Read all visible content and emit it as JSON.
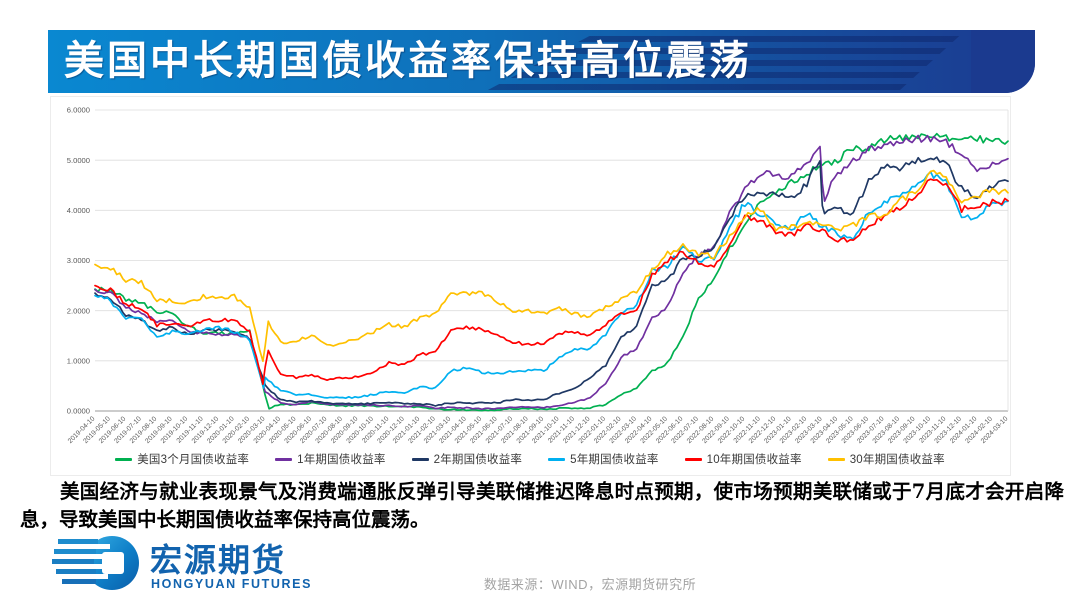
{
  "header": {
    "title": "美国中长期国债收益率保持高位震荡"
  },
  "chart_data": {
    "type": "line",
    "title": "",
    "xlabel": "",
    "ylabel": "",
    "ylim": [
      0,
      6
    ],
    "grid": true,
    "legend_position": "bottom",
    "yticks": [
      "0.0000",
      "1.0000",
      "2.0000",
      "3.0000",
      "4.0000",
      "5.0000",
      "6.0000"
    ],
    "x_labels": [
      "2019-04-10",
      "2019-05-10",
      "2019-06-10",
      "2019-07-10",
      "2019-08-10",
      "2019-09-10",
      "2019-10-10",
      "2019-11-10",
      "2019-12-10",
      "2020-01-10",
      "2020-02-10",
      "2020-03-10",
      "2020-04-10",
      "2020-05-10",
      "2020-06-10",
      "2020-07-10",
      "2020-08-10",
      "2020-09-10",
      "2020-10-10",
      "2020-11-10",
      "2020-12-10",
      "2021-01-10",
      "2021-02-10",
      "2021-03-10",
      "2021-04-10",
      "2021-05-10",
      "2021-06-10",
      "2021-07-10",
      "2021-08-10",
      "2021-09-10",
      "2021-10-10",
      "2021-11-10",
      "2021-12-10",
      "2022-01-10",
      "2022-02-10",
      "2022-03-10",
      "2022-04-10",
      "2022-05-10",
      "2022-06-10",
      "2022-07-10",
      "2022-08-10",
      "2022-09-10",
      "2022-10-10",
      "2022-11-10",
      "2022-12-10",
      "2023-01-10",
      "2023-02-10",
      "2023-03-10",
      "2023-04-10",
      "2023-05-10",
      "2023-06-10",
      "2023-07-10",
      "2023-08-10",
      "2023-09-10",
      "2023-10-10",
      "2023-11-10",
      "2023-12-10",
      "2024-01-10",
      "2024-02-10",
      "2024-03-10"
    ],
    "series": [
      {
        "name": "美国3个月国债收益率",
        "color": "#00B050",
        "values": [
          2.43,
          2.4,
          2.23,
          2.15,
          1.97,
          1.95,
          1.68,
          1.56,
          1.55,
          1.55,
          1.58,
          0.3,
          0.14,
          0.12,
          0.16,
          0.13,
          0.1,
          0.11,
          0.1,
          0.09,
          0.08,
          0.08,
          0.04,
          0.03,
          0.02,
          0.01,
          0.02,
          0.05,
          0.05,
          0.04,
          0.05,
          0.05,
          0.06,
          0.13,
          0.33,
          0.45,
          0.79,
          0.96,
          1.49,
          2.23,
          2.63,
          3.23,
          3.72,
          4.21,
          4.31,
          4.57,
          4.74,
          4.9,
          5.0,
          5.25,
          5.22,
          5.4,
          5.45,
          5.46,
          5.47,
          5.45,
          5.42,
          5.42,
          5.4,
          5.38
        ],
        "spikes": [
          {
            "t": 11.25,
            "v": 0.05
          }
        ]
      },
      {
        "name": "1年期国债收益率",
        "color": "#7030A0",
        "values": [
          2.42,
          2.35,
          2.05,
          1.95,
          1.78,
          1.78,
          1.58,
          1.55,
          1.54,
          1.52,
          1.45,
          0.38,
          0.16,
          0.13,
          0.18,
          0.14,
          0.13,
          0.12,
          0.12,
          0.11,
          0.09,
          0.1,
          0.06,
          0.07,
          0.06,
          0.04,
          0.05,
          0.08,
          0.07,
          0.07,
          0.11,
          0.17,
          0.27,
          0.55,
          1.06,
          1.26,
          1.86,
          2.07,
          2.77,
          3.09,
          3.26,
          3.93,
          4.44,
          4.75,
          4.7,
          4.68,
          4.91,
          4.6,
          4.76,
          4.97,
          5.21,
          5.32,
          5.36,
          5.43,
          5.43,
          5.36,
          5.13,
          4.8,
          4.94,
          5.03
        ],
        "spikes": [
          {
            "t": 46.85,
            "v": 5.28
          },
          {
            "t": 47.15,
            "v": 4.25
          }
        ]
      },
      {
        "name": "2年期国债收益率",
        "color": "#1F3864",
        "values": [
          2.35,
          2.26,
          1.9,
          1.82,
          1.58,
          1.67,
          1.53,
          1.61,
          1.63,
          1.57,
          1.43,
          0.5,
          0.22,
          0.18,
          0.2,
          0.16,
          0.14,
          0.14,
          0.15,
          0.17,
          0.14,
          0.14,
          0.11,
          0.16,
          0.16,
          0.16,
          0.16,
          0.23,
          0.22,
          0.22,
          0.36,
          0.45,
          0.68,
          0.9,
          1.5,
          1.68,
          2.5,
          2.61,
          3.05,
          3.07,
          3.27,
          3.84,
          4.3,
          4.34,
          4.32,
          4.22,
          4.51,
          4.03,
          4.02,
          3.92,
          4.61,
          4.86,
          4.8,
          4.99,
          5.05,
          4.93,
          4.43,
          4.22,
          4.48,
          4.58
        ],
        "spikes": [
          {
            "t": 46.85,
            "v": 5.05
          },
          {
            "t": 47.15,
            "v": 3.95
          }
        ]
      },
      {
        "name": "5年期国债收益率",
        "color": "#00B0F0",
        "values": [
          2.3,
          2.2,
          1.85,
          1.82,
          1.47,
          1.58,
          1.52,
          1.63,
          1.66,
          1.58,
          1.41,
          0.66,
          0.4,
          0.33,
          0.33,
          0.27,
          0.27,
          0.27,
          0.33,
          0.39,
          0.37,
          0.48,
          0.46,
          0.8,
          0.86,
          0.77,
          0.74,
          0.8,
          0.81,
          0.8,
          1.06,
          1.22,
          1.25,
          1.53,
          1.95,
          2.1,
          2.8,
          2.89,
          3.26,
          2.99,
          3.03,
          3.64,
          4.14,
          3.94,
          3.75,
          3.62,
          3.93,
          3.68,
          3.52,
          3.41,
          3.97,
          4.18,
          4.26,
          4.46,
          4.72,
          4.58,
          3.91,
          3.84,
          4.15,
          4.18
        ],
        "spikes": [
          {
            "t": 10.9,
            "v": 0.45
          }
        ]
      },
      {
        "name": "10年期国债收益率",
        "color": "#FF0000",
        "values": [
          2.5,
          2.42,
          2.13,
          2.06,
          1.71,
          1.75,
          1.67,
          1.81,
          1.82,
          1.81,
          1.59,
          0.87,
          0.73,
          0.67,
          0.73,
          0.62,
          0.66,
          0.68,
          0.78,
          0.96,
          0.92,
          1.13,
          1.16,
          1.62,
          1.67,
          1.63,
          1.49,
          1.36,
          1.34,
          1.33,
          1.56,
          1.56,
          1.49,
          1.74,
          1.93,
          2.0,
          2.72,
          2.99,
          3.16,
          2.96,
          2.84,
          3.32,
          3.89,
          3.82,
          3.58,
          3.51,
          3.71,
          3.6,
          3.4,
          3.44,
          3.73,
          3.86,
          4.07,
          4.28,
          4.65,
          4.52,
          4.03,
          4.03,
          4.17,
          4.19
        ],
        "spikes": [
          {
            "t": 10.85,
            "v": 0.55
          },
          {
            "t": 11.2,
            "v": 1.18
          }
        ]
      },
      {
        "name": "30年期国债收益率",
        "color": "#FFC000",
        "values": [
          2.92,
          2.85,
          2.61,
          2.57,
          2.21,
          2.2,
          2.16,
          2.28,
          2.25,
          2.28,
          2.04,
          1.3,
          1.36,
          1.38,
          1.52,
          1.31,
          1.35,
          1.43,
          1.58,
          1.73,
          1.67,
          1.87,
          1.94,
          2.34,
          2.34,
          2.35,
          2.17,
          2.0,
          1.99,
          1.93,
          2.06,
          1.93,
          1.88,
          2.08,
          2.24,
          2.38,
          2.81,
          3.14,
          3.28,
          3.12,
          3.09,
          3.46,
          3.86,
          4.04,
          3.63,
          3.66,
          3.72,
          3.76,
          3.63,
          3.71,
          3.87,
          3.93,
          4.2,
          4.35,
          4.79,
          4.67,
          4.18,
          4.25,
          4.41,
          4.35
        ],
        "spikes": [
          {
            "t": 10.85,
            "v": 0.99
          },
          {
            "t": 11.2,
            "v": 1.78
          }
        ]
      }
    ]
  },
  "commentary": {
    "text": "美国经济与就业表现景气及消费端通胀反弹引导美联储推迟降息时点预期，使市场预期美联储或于7月底才会开启降息，导致美国中长期国债收益率保持高位震荡。"
  },
  "logo": {
    "cn": "宏源期货",
    "en": "HONGYUAN FUTURES"
  },
  "footer": {
    "source": "数据来源：WIND，宏源期货研究所"
  }
}
